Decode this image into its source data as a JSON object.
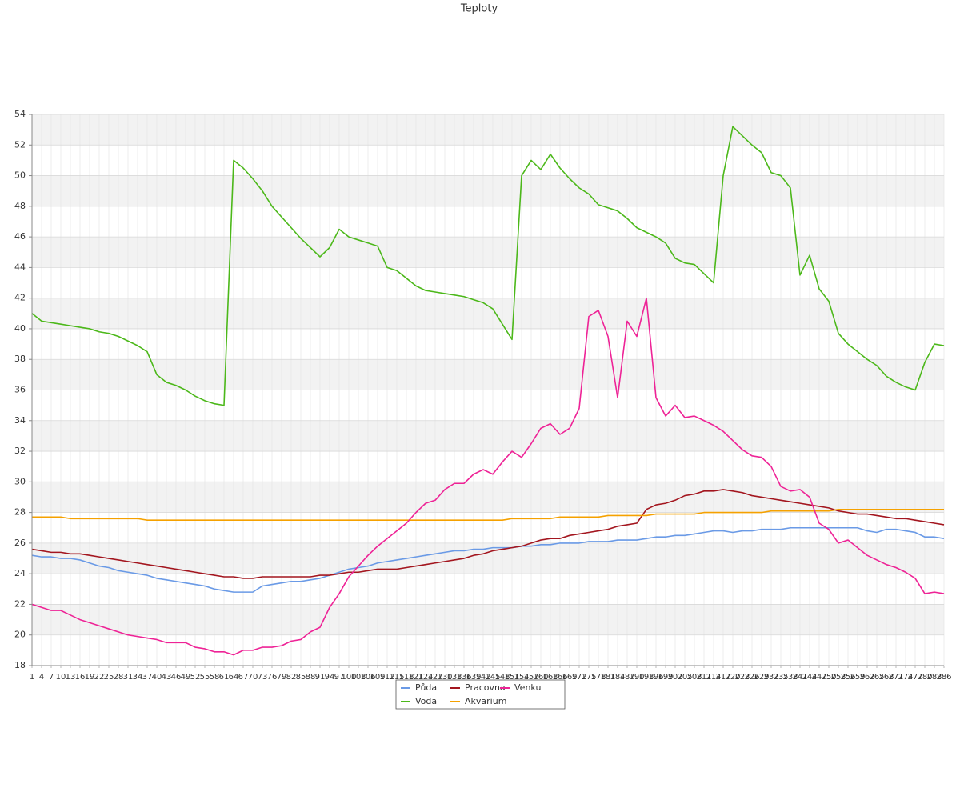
{
  "chart_data": {
    "type": "line",
    "title": "Teploty",
    "categories": [
      "1",
      "4",
      "7",
      "10",
      "13",
      "16",
      "19",
      "22",
      "25",
      "28",
      "31",
      "34",
      "37",
      "40",
      "43",
      "46",
      "49",
      "52",
      "55",
      "58",
      "61",
      "64",
      "67",
      "70",
      "73",
      "76",
      "79",
      "82",
      "85",
      "88",
      "91",
      "94",
      "97",
      "100",
      "103",
      "106",
      "109",
      "112",
      "115",
      "118",
      "121",
      "124",
      "127",
      "130",
      "133",
      "136",
      "139",
      "142",
      "145",
      "148",
      "151",
      "154",
      "157",
      "160",
      "163",
      "166",
      "169",
      "172",
      "175",
      "178",
      "181",
      "184",
      "187",
      "190",
      "193",
      "196",
      "199",
      "202",
      "205",
      "208",
      "211",
      "214",
      "217",
      "220",
      "223",
      "226",
      "229",
      "232",
      "235",
      "238",
      "241",
      "244",
      "247",
      "250",
      "253",
      "256",
      "259",
      "262",
      "265",
      "268",
      "271",
      "274",
      "277",
      "280",
      "283",
      "286"
    ],
    "series": [
      {
        "name": "Půda",
        "color": "#6a9ae6",
        "values": [
          25.2,
          25.1,
          25.1,
          25.0,
          25.0,
          24.9,
          24.7,
          24.5,
          24.4,
          24.2,
          24.1,
          24.0,
          23.9,
          23.7,
          23.6,
          23.5,
          23.4,
          23.3,
          23.2,
          23.0,
          22.9,
          22.8,
          22.8,
          22.8,
          23.2,
          23.3,
          23.4,
          23.5,
          23.5,
          23.6,
          23.7,
          23.9,
          24.1,
          24.3,
          24.4,
          24.5,
          24.7,
          24.8,
          24.9,
          25.0,
          25.1,
          25.2,
          25.3,
          25.4,
          25.5,
          25.5,
          25.6,
          25.6,
          25.7,
          25.7,
          25.7,
          25.8,
          25.8,
          25.9,
          25.9,
          26.0,
          26.0,
          26.0,
          26.1,
          26.1,
          26.1,
          26.2,
          26.2,
          26.2,
          26.3,
          26.4,
          26.4,
          26.5,
          26.5,
          26.6,
          26.7,
          26.8,
          26.8,
          26.7,
          26.8,
          26.8,
          26.9,
          26.9,
          26.9,
          27.0,
          27.0,
          27.0,
          27.0,
          27.0,
          27.0,
          27.0,
          27.0,
          26.8,
          26.7,
          26.9,
          26.9,
          26.8,
          26.7,
          26.4,
          26.4,
          26.3
        ]
      },
      {
        "name": "Voda",
        "color": "#4cb81a",
        "values": [
          41.0,
          40.5,
          40.4,
          40.3,
          40.2,
          40.1,
          40.0,
          39.8,
          39.7,
          39.5,
          39.2,
          38.9,
          38.5,
          37.0,
          36.5,
          36.3,
          36.0,
          35.6,
          35.3,
          35.1,
          35.0,
          51.0,
          50.5,
          49.8,
          49.0,
          48.0,
          47.3,
          46.6,
          45.9,
          45.3,
          44.7,
          45.3,
          46.5,
          46.0,
          45.8,
          45.6,
          45.4,
          44.0,
          43.8,
          43.3,
          42.8,
          42.5,
          42.4,
          42.3,
          42.2,
          42.1,
          41.9,
          41.7,
          41.3,
          40.3,
          39.3,
          50.0,
          51.0,
          50.4,
          51.4,
          50.5,
          49.8,
          49.2,
          48.8,
          48.1,
          47.9,
          47.7,
          47.2,
          46.6,
          46.3,
          46.0,
          45.6,
          44.6,
          44.3,
          44.2,
          43.6,
          43.0,
          50.0,
          53.2,
          52.6,
          52.0,
          51.5,
          50.2,
          50.0,
          49.2,
          43.5,
          44.8,
          42.6,
          41.8,
          39.7,
          39.0,
          38.5,
          38.0,
          37.6,
          36.9,
          36.5,
          36.2,
          36.0,
          37.8,
          39.0,
          38.9
        ]
      },
      {
        "name": "Pracovna",
        "color": "#a3161f",
        "values": [
          25.6,
          25.5,
          25.4,
          25.4,
          25.3,
          25.3,
          25.2,
          25.1,
          25.0,
          24.9,
          24.8,
          24.7,
          24.6,
          24.5,
          24.4,
          24.3,
          24.2,
          24.1,
          24.0,
          23.9,
          23.8,
          23.8,
          23.7,
          23.7,
          23.8,
          23.8,
          23.8,
          23.8,
          23.8,
          23.8,
          23.9,
          23.9,
          24.0,
          24.1,
          24.1,
          24.2,
          24.3,
          24.3,
          24.3,
          24.4,
          24.5,
          24.6,
          24.7,
          24.8,
          24.9,
          25.0,
          25.2,
          25.3,
          25.5,
          25.6,
          25.7,
          25.8,
          26.0,
          26.2,
          26.3,
          26.3,
          26.5,
          26.6,
          26.7,
          26.8,
          26.9,
          27.1,
          27.2,
          27.3,
          28.2,
          28.5,
          28.6,
          28.8,
          29.1,
          29.2,
          29.4,
          29.4,
          29.5,
          29.4,
          29.3,
          29.1,
          29.0,
          28.9,
          28.8,
          28.7,
          28.6,
          28.5,
          28.4,
          28.3,
          28.1,
          28.0,
          27.9,
          27.9,
          27.8,
          27.7,
          27.6,
          27.6,
          27.5,
          27.4,
          27.3,
          27.2
        ]
      },
      {
        "name": "Akvarium",
        "color": "#f5a100",
        "values": [
          27.7,
          27.7,
          27.7,
          27.7,
          27.6,
          27.6,
          27.6,
          27.6,
          27.6,
          27.6,
          27.6,
          27.6,
          27.5,
          27.5,
          27.5,
          27.5,
          27.5,
          27.5,
          27.5,
          27.5,
          27.5,
          27.5,
          27.5,
          27.5,
          27.5,
          27.5,
          27.5,
          27.5,
          27.5,
          27.5,
          27.5,
          27.5,
          27.5,
          27.5,
          27.5,
          27.5,
          27.5,
          27.5,
          27.5,
          27.5,
          27.5,
          27.5,
          27.5,
          27.5,
          27.5,
          27.5,
          27.5,
          27.5,
          27.5,
          27.5,
          27.6,
          27.6,
          27.6,
          27.6,
          27.6,
          27.7,
          27.7,
          27.7,
          27.7,
          27.7,
          27.8,
          27.8,
          27.8,
          27.8,
          27.8,
          27.9,
          27.9,
          27.9,
          27.9,
          27.9,
          28.0,
          28.0,
          28.0,
          28.0,
          28.0,
          28.0,
          28.0,
          28.1,
          28.1,
          28.1,
          28.1,
          28.1,
          28.1,
          28.1,
          28.2,
          28.2,
          28.2,
          28.2,
          28.2,
          28.2,
          28.2,
          28.2,
          28.2,
          28.2,
          28.2,
          28.2
        ]
      },
      {
        "name": "Venku",
        "color": "#ee2396",
        "values": [
          22.0,
          21.8,
          21.6,
          21.6,
          21.3,
          21.0,
          20.8,
          20.6,
          20.4,
          20.2,
          20.0,
          19.9,
          19.8,
          19.7,
          19.5,
          19.5,
          19.5,
          19.2,
          19.1,
          18.9,
          18.9,
          18.7,
          19.0,
          19.0,
          19.2,
          19.2,
          19.3,
          19.6,
          19.7,
          20.2,
          20.5,
          21.8,
          22.7,
          23.8,
          24.5,
          25.2,
          25.8,
          26.3,
          26.8,
          27.3,
          28.0,
          28.6,
          28.8,
          29.5,
          29.9,
          29.9,
          30.5,
          30.8,
          30.5,
          31.3,
          32.0,
          31.6,
          32.5,
          33.5,
          33.8,
          33.1,
          33.5,
          34.8,
          40.8,
          41.2,
          39.5,
          35.5,
          40.5,
          39.5,
          42.0,
          35.5,
          34.3,
          35.0,
          34.2,
          34.3,
          34.0,
          33.7,
          33.3,
          32.7,
          32.1,
          31.7,
          31.6,
          31.0,
          29.7,
          29.4,
          29.5,
          29.0,
          27.3,
          26.9,
          26.0,
          26.2,
          25.7,
          25.2,
          24.9,
          24.6,
          24.4,
          24.1,
          23.7,
          22.7,
          22.8,
          22.7
        ]
      }
    ],
    "ylim": [
      18,
      54
    ],
    "yticks": [
      18,
      20,
      22,
      24,
      26,
      28,
      30,
      32,
      34,
      36,
      38,
      40,
      42,
      44,
      46,
      48,
      50,
      52,
      54
    ],
    "grid": true
  }
}
